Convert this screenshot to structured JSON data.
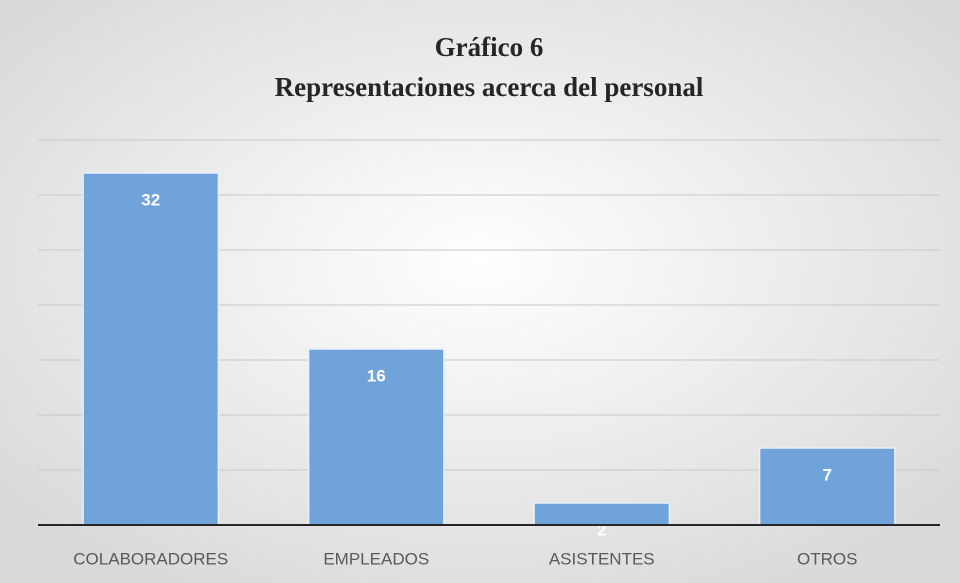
{
  "chart_data": {
    "type": "bar",
    "title": "Gráfico 6",
    "subtitle": "Representaciones acerca del personal",
    "categories": [
      "COLABORADORES",
      "EMPLEADOS",
      "ASISTENTES",
      "OTROS"
    ],
    "values": [
      32,
      16,
      2,
      7
    ],
    "color": "#6fa3da",
    "ylim": [
      0,
      35
    ],
    "yticks": [
      0,
      5,
      10,
      15,
      20,
      25,
      30,
      35
    ],
    "grid": true
  }
}
